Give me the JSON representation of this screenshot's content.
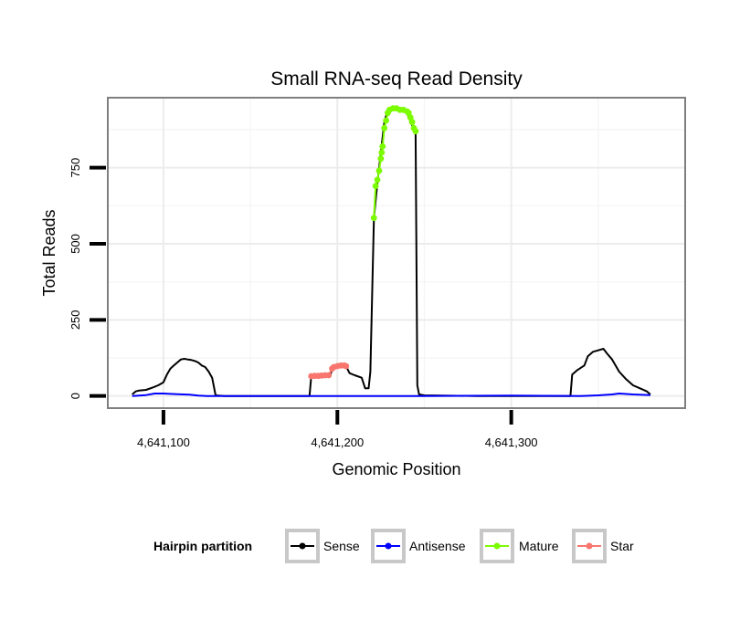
{
  "chart_data": {
    "type": "line",
    "title": "Small RNA-seq Read Density",
    "xlabel": "Genomic Position",
    "ylabel": "Total Reads",
    "xlim": [
      4641068,
      4641400
    ],
    "ylim": [
      -40,
      980
    ],
    "x_ticks": [
      {
        "value": 4641100,
        "label": "4,641,100"
      },
      {
        "value": 4641200,
        "label": "4,641,200"
      },
      {
        "value": 4641300,
        "label": "4,641,300"
      }
    ],
    "y_ticks": [
      {
        "value": 0,
        "label": "0"
      },
      {
        "value": 250,
        "label": "250"
      },
      {
        "value": 500,
        "label": "500"
      },
      {
        "value": 750,
        "label": "750"
      }
    ],
    "grid": true,
    "legend": {
      "title": "Hairpin partition",
      "placement": "bottom",
      "entries": [
        {
          "name": "Sense",
          "color": "#000000"
        },
        {
          "name": "Antisense",
          "color": "#0000ff"
        },
        {
          "name": "Mature",
          "color": "#7cfc00"
        },
        {
          "name": "Star",
          "color": "#f8766d"
        }
      ]
    },
    "series": [
      {
        "name": "Sense",
        "color": "#000000",
        "markers": false,
        "points": [
          [
            4641082,
            5
          ],
          [
            4641084,
            15
          ],
          [
            4641086,
            18
          ],
          [
            4641090,
            20
          ],
          [
            4641094,
            28
          ],
          [
            4641097,
            35
          ],
          [
            4641100,
            45
          ],
          [
            4641102,
            70
          ],
          [
            4641104,
            90
          ],
          [
            4641106,
            100
          ],
          [
            4641108,
            110
          ],
          [
            4641110,
            120
          ],
          [
            4641112,
            122
          ],
          [
            4641114,
            120
          ],
          [
            4641116,
            118
          ],
          [
            4641118,
            115
          ],
          [
            4641120,
            110
          ],
          [
            4641122,
            100
          ],
          [
            4641124,
            95
          ],
          [
            4641126,
            80
          ],
          [
            4641128,
            60
          ],
          [
            4641130,
            2
          ],
          [
            4641135,
            0
          ],
          [
            4641150,
            0
          ],
          [
            4641170,
            0
          ],
          [
            4641184,
            0
          ],
          [
            4641185,
            65
          ],
          [
            4641196,
            68
          ],
          [
            4641197,
            90
          ],
          [
            4641205,
            98
          ],
          [
            4641207,
            75
          ],
          [
            4641210,
            68
          ],
          [
            4641214,
            60
          ],
          [
            4641216,
            25
          ],
          [
            4641218,
            25
          ],
          [
            4641219,
            80
          ],
          [
            4641221,
            585
          ],
          [
            4641223,
            700
          ],
          [
            4641225,
            800
          ],
          [
            4641227,
            900
          ],
          [
            4641229,
            940
          ],
          [
            4641232,
            945
          ],
          [
            4641236,
            940
          ],
          [
            4641240,
            930
          ],
          [
            4641243,
            890
          ],
          [
            4641245,
            870
          ],
          [
            4641246,
            35
          ],
          [
            4641247,
            5
          ],
          [
            4641250,
            2
          ],
          [
            4641260,
            1
          ],
          [
            4641280,
            0
          ],
          [
            4641300,
            0
          ],
          [
            4641334,
            0
          ],
          [
            4641335,
            70
          ],
          [
            4641338,
            85
          ],
          [
            4641342,
            100
          ],
          [
            4641344,
            130
          ],
          [
            4641347,
            145
          ],
          [
            4641350,
            150
          ],
          [
            4641353,
            155
          ],
          [
            4641355,
            140
          ],
          [
            4641358,
            120
          ],
          [
            4641362,
            80
          ],
          [
            4641366,
            55
          ],
          [
            4641370,
            35
          ],
          [
            4641374,
            25
          ],
          [
            4641378,
            15
          ],
          [
            4641380,
            5
          ]
        ]
      },
      {
        "name": "Antisense",
        "color": "#0000ff",
        "markers": false,
        "points": [
          [
            4641082,
            0
          ],
          [
            4641090,
            3
          ],
          [
            4641095,
            8
          ],
          [
            4641100,
            8
          ],
          [
            4641108,
            6
          ],
          [
            4641115,
            4
          ],
          [
            4641120,
            1
          ],
          [
            4641125,
            0
          ],
          [
            4641130,
            0
          ],
          [
            4641170,
            0
          ],
          [
            4641250,
            0
          ],
          [
            4641300,
            1
          ],
          [
            4641340,
            0
          ],
          [
            4641350,
            2
          ],
          [
            4641358,
            5
          ],
          [
            4641362,
            8
          ],
          [
            4641370,
            5
          ],
          [
            4641380,
            3
          ]
        ]
      },
      {
        "name": "Star",
        "color": "#f8766d",
        "markers": true,
        "points": [
          [
            4641185,
            65
          ],
          [
            4641187,
            66
          ],
          [
            4641189,
            66
          ],
          [
            4641191,
            67
          ],
          [
            4641193,
            68
          ],
          [
            4641195,
            68
          ],
          [
            4641197,
            90
          ],
          [
            4641198,
            95
          ],
          [
            4641200,
            98
          ],
          [
            4641202,
            100
          ],
          [
            4641204,
            100
          ],
          [
            4641205,
            98
          ]
        ]
      },
      {
        "name": "Mature",
        "color": "#7cfc00",
        "markers": true,
        "points": [
          [
            4641221,
            585
          ],
          [
            4641222,
            690
          ],
          [
            4641223,
            710
          ],
          [
            4641224,
            740
          ],
          [
            4641225,
            780
          ],
          [
            4641225.5,
            800
          ],
          [
            4641226,
            820
          ],
          [
            4641227,
            880
          ],
          [
            4641228,
            905
          ],
          [
            4641229,
            930
          ],
          [
            4641230,
            940
          ],
          [
            4641232,
            945
          ],
          [
            4641234,
            945
          ],
          [
            4641236,
            940
          ],
          [
            4641238,
            940
          ],
          [
            4641240,
            935
          ],
          [
            4641241,
            930
          ],
          [
            4641242,
            915
          ],
          [
            4641243,
            900
          ],
          [
            4641244,
            880
          ],
          [
            4641245,
            870
          ]
        ]
      }
    ]
  }
}
